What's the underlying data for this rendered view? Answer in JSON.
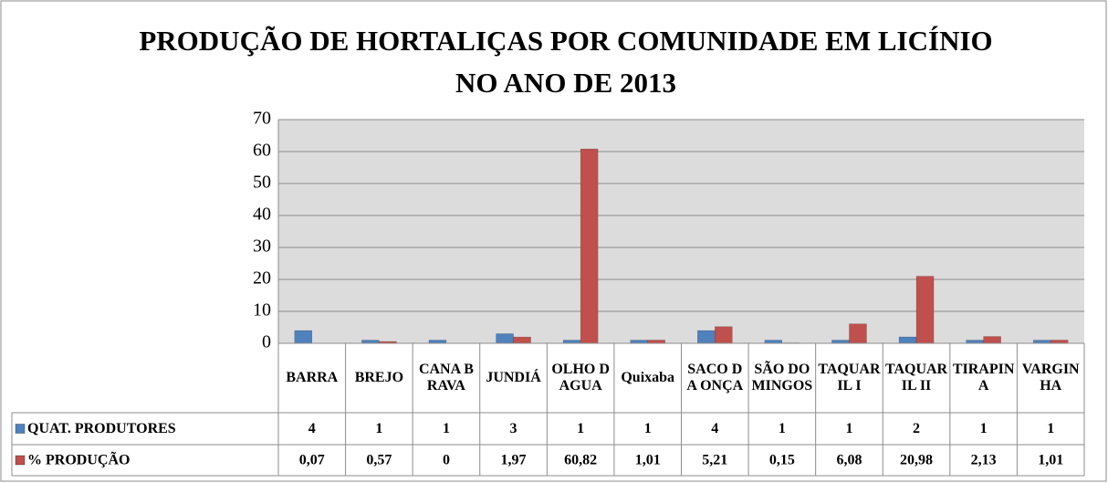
{
  "chart_data": {
    "type": "bar",
    "title": "PRODUÇÃO DE HORTALIÇAS POR COMUNIDADE EM LICÍNIO NO ANO DE 2013",
    "categories": [
      "BARRA",
      "BREJO",
      "CANA BRAVA",
      "JUNDIÁ",
      "OLHO DAGUA",
      "Quixaba",
      "SACO DA ONÇA",
      "SÃO DOMINGOS",
      "TAQUARIL I",
      "TAQUARIL II",
      "TIRAPINA",
      "VARGINHA"
    ],
    "series": [
      {
        "name": "QUAT. PRODUTORES",
        "color": "#4f81bd",
        "values": [
          4,
          1,
          1,
          3,
          1,
          1,
          4,
          1,
          1,
          2,
          1,
          1
        ]
      },
      {
        "name": "% PRODUÇÃO",
        "color": "#c0504d",
        "values": [
          0.07,
          0.57,
          0,
          1.97,
          60.82,
          1.01,
          5.21,
          0.15,
          6.08,
          20.98,
          2.13,
          1.01
        ],
        "value_labels": [
          "0,07",
          "0,57",
          "0",
          "1,97",
          "60,82",
          "1,01",
          "5,21",
          "0,15",
          "6,08",
          "20,98",
          "2,13",
          "1,01"
        ]
      }
    ],
    "ylim": [
      0,
      70
    ],
    "yticks": [
      0,
      10,
      20,
      30,
      40,
      50,
      60,
      70
    ],
    "grid": true
  }
}
